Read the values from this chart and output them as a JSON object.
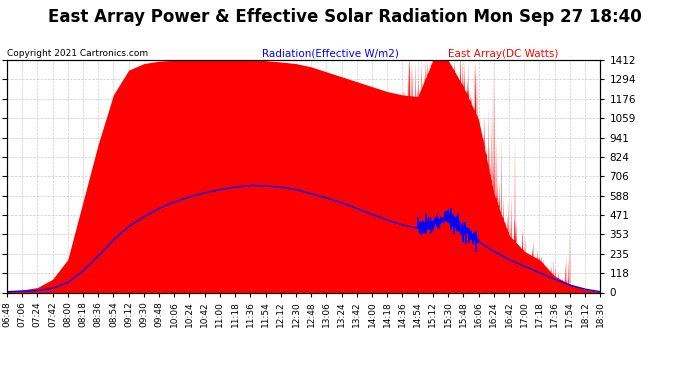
{
  "title": "East Array Power & Effective Solar Radiation Mon Sep 27 18:40",
  "copyright": "Copyright 2021 Cartronics.com",
  "legend_radiation": "Radiation(Effective W/m2)",
  "legend_array": "East Array(DC Watts)",
  "legend_radiation_color": "blue",
  "legend_array_color": "red",
  "ymin": 0.0,
  "ymax": 1411.8,
  "yticks": [
    0.0,
    117.6,
    235.3,
    352.9,
    470.6,
    588.2,
    705.9,
    823.5,
    941.2,
    1058.8,
    1176.5,
    1294.1,
    1411.8
  ],
  "background_color": "#ffffff",
  "plot_bg_color": "#ffffff",
  "grid_color": "#cccccc",
  "title_fontsize": 12,
  "fill_color": "red",
  "fill_alpha": 1.0,
  "time_labels": [
    "06:48",
    "07:06",
    "07:24",
    "07:42",
    "08:00",
    "08:18",
    "08:36",
    "08:54",
    "09:12",
    "09:30",
    "09:48",
    "10:06",
    "10:24",
    "10:42",
    "11:00",
    "11:18",
    "11:36",
    "11:54",
    "12:12",
    "12:30",
    "12:48",
    "13:06",
    "13:24",
    "13:42",
    "14:00",
    "14:18",
    "14:36",
    "14:54",
    "15:12",
    "15:30",
    "15:48",
    "16:06",
    "16:24",
    "16:42",
    "17:00",
    "17:18",
    "17:36",
    "17:54",
    "18:12",
    "18:30"
  ]
}
